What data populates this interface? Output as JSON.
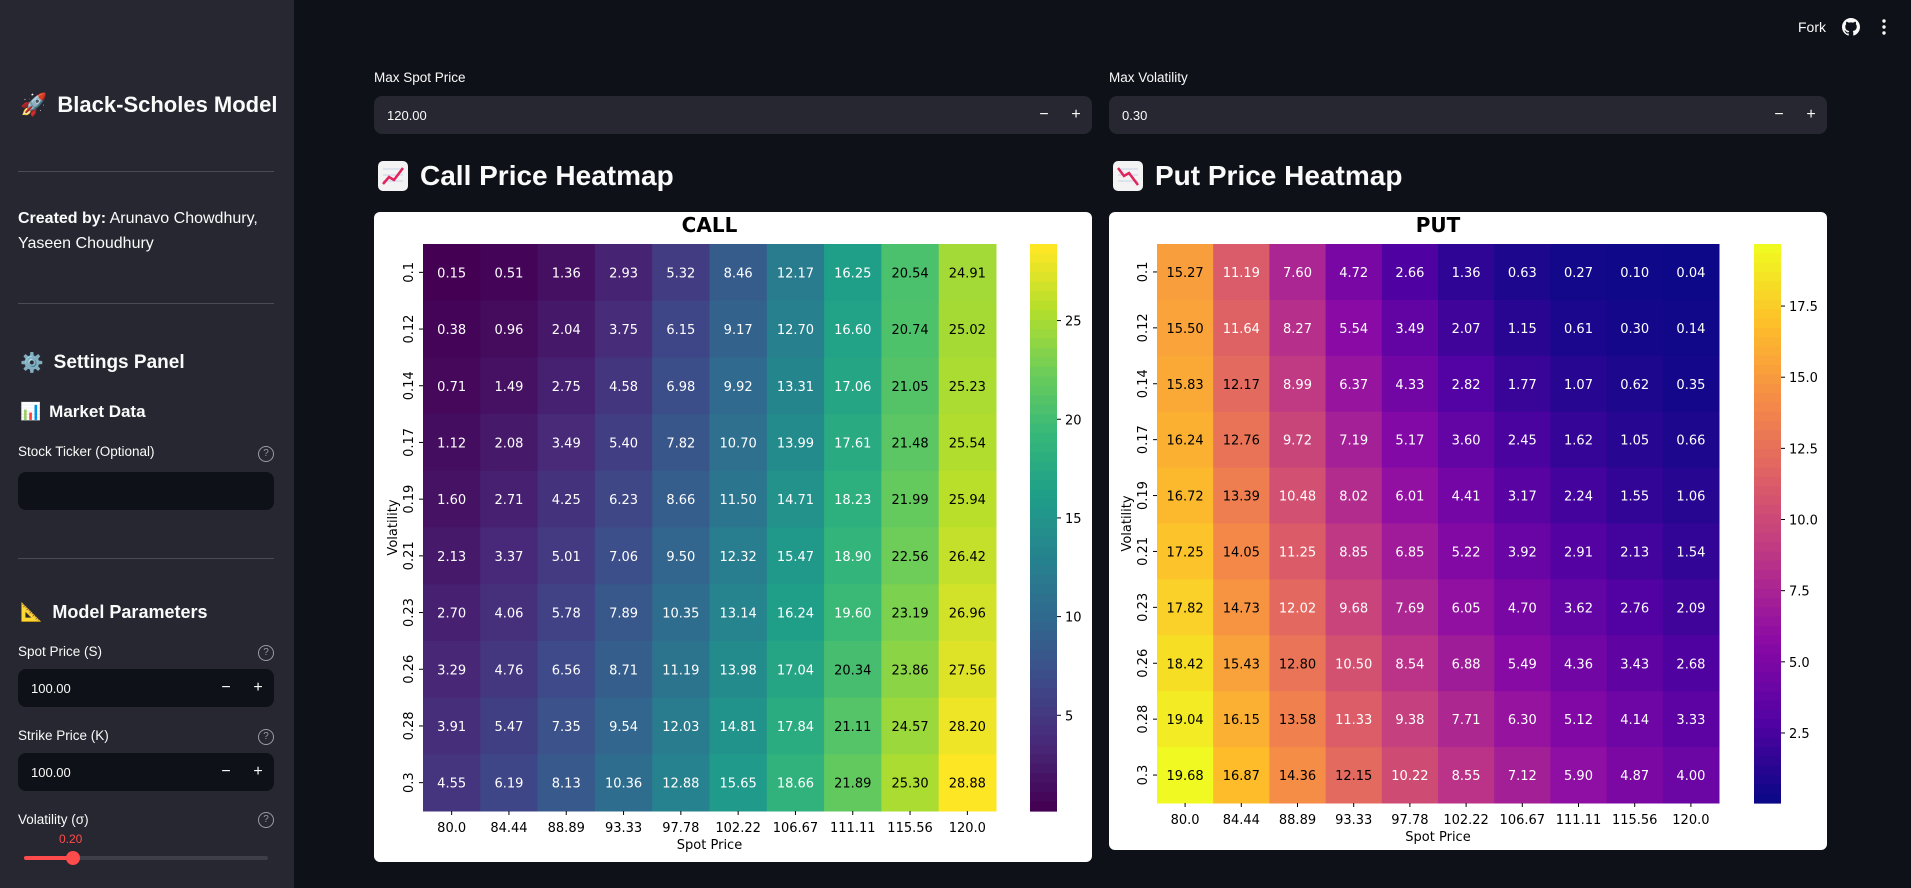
{
  "sidebar": {
    "app_title": "Black-Scholes Model",
    "app_emoji": "🚀",
    "created_label": "Created by:",
    "created_names": " Arunavo Chowdhury, Yaseen Choudhury",
    "settings_title": "Settings Panel",
    "settings_emoji": "⚙️",
    "market_title": "Market Data",
    "market_emoji": "📊",
    "ticker_label": "Stock Ticker (Optional)",
    "ticker_value": "",
    "model_title": "Model Parameters",
    "model_emoji": "📐",
    "spot_label": "Spot Price (S)",
    "spot_value": "100.00",
    "strike_label": "Strike Price (K)",
    "strike_value": "100.00",
    "vol_label": "Volatility (σ)",
    "vol_value": "0.20",
    "vol_min": 0.0,
    "vol_max": 1.0,
    "minus": "−",
    "plus": "+",
    "help": "?"
  },
  "header": {
    "fork_label": "Fork"
  },
  "main": {
    "max_spot_label": "Max Spot Price",
    "max_spot_value": "120.00",
    "max_vol_label": "Max Volatility",
    "max_vol_value": "0.30",
    "call_title": "Call Price Heatmap",
    "put_title": "Put Price Heatmap"
  },
  "colors": {
    "accent": "#ff4b4b",
    "background": "#0e1117",
    "sidebar": "#262730",
    "input": "#262730"
  },
  "chart_data": [
    {
      "type": "heatmap",
      "title": "CALL",
      "xlabel": "Spot Price",
      "ylabel": "Volatility",
      "colormap": "viridis",
      "x": [
        "80.0",
        "84.44",
        "88.89",
        "93.33",
        "97.78",
        "102.22",
        "106.67",
        "111.11",
        "115.56",
        "120.0"
      ],
      "y": [
        "0.1",
        "0.12",
        "0.14",
        "0.17",
        "0.19",
        "0.21",
        "0.23",
        "0.26",
        "0.28",
        "0.3"
      ],
      "colorbar_ticks": [
        5,
        10,
        15,
        20,
        25
      ],
      "vmin": 0.15,
      "vmax": 28.88,
      "values": [
        [
          0.15,
          0.51,
          1.36,
          2.93,
          5.32,
          8.46,
          12.17,
          16.25,
          20.54,
          24.91
        ],
        [
          0.38,
          0.96,
          2.04,
          3.75,
          6.15,
          9.17,
          12.7,
          16.6,
          20.74,
          25.02
        ],
        [
          0.71,
          1.49,
          2.75,
          4.58,
          6.98,
          9.92,
          13.31,
          17.06,
          21.05,
          25.23
        ],
        [
          1.12,
          2.08,
          3.49,
          5.4,
          7.82,
          10.7,
          13.99,
          17.61,
          21.48,
          25.54
        ],
        [
          1.6,
          2.71,
          4.25,
          6.23,
          8.66,
          11.5,
          14.71,
          18.23,
          21.99,
          25.94
        ],
        [
          2.13,
          3.37,
          5.01,
          7.06,
          9.5,
          12.32,
          15.47,
          18.9,
          22.56,
          26.42
        ],
        [
          2.7,
          4.06,
          5.78,
          7.89,
          10.35,
          13.14,
          16.24,
          19.6,
          23.19,
          26.96
        ],
        [
          3.29,
          4.76,
          6.56,
          8.71,
          11.19,
          13.98,
          17.04,
          20.34,
          23.86,
          27.56
        ],
        [
          3.91,
          5.47,
          7.35,
          9.54,
          12.03,
          14.81,
          17.84,
          21.11,
          24.57,
          28.2
        ],
        [
          4.55,
          6.19,
          8.13,
          10.36,
          12.88,
          15.65,
          18.66,
          21.89,
          25.3,
          28.88
        ]
      ]
    },
    {
      "type": "heatmap",
      "title": "PUT",
      "xlabel": "Spot Price",
      "ylabel": "Volatility",
      "colormap": "plasma",
      "x": [
        "80.0",
        "84.44",
        "88.89",
        "93.33",
        "97.78",
        "102.22",
        "106.67",
        "111.11",
        "115.56",
        "120.0"
      ],
      "y": [
        "0.1",
        "0.12",
        "0.14",
        "0.17",
        "0.19",
        "0.21",
        "0.23",
        "0.26",
        "0.28",
        "0.3"
      ],
      "colorbar_ticks": [
        "2.5",
        "5.0",
        "7.5",
        "10.0",
        "12.5",
        "15.0",
        "17.5"
      ],
      "vmin": 0.04,
      "vmax": 19.68,
      "values": [
        [
          15.27,
          11.19,
          7.6,
          4.72,
          2.66,
          1.36,
          0.63,
          0.27,
          0.1,
          0.04
        ],
        [
          15.5,
          11.64,
          8.27,
          5.54,
          3.49,
          2.07,
          1.15,
          0.61,
          0.3,
          0.14
        ],
        [
          15.83,
          12.17,
          8.99,
          6.37,
          4.33,
          2.82,
          1.77,
          1.07,
          0.62,
          0.35
        ],
        [
          16.24,
          12.76,
          9.72,
          7.19,
          5.17,
          3.6,
          2.45,
          1.62,
          1.05,
          0.66
        ],
        [
          16.72,
          13.39,
          10.48,
          8.02,
          6.01,
          4.41,
          3.17,
          2.24,
          1.55,
          1.06
        ],
        [
          17.25,
          14.05,
          11.25,
          8.85,
          6.85,
          5.22,
          3.92,
          2.91,
          2.13,
          1.54
        ],
        [
          17.82,
          14.73,
          12.02,
          9.68,
          7.69,
          6.05,
          4.7,
          3.62,
          2.76,
          2.09
        ],
        [
          18.42,
          15.43,
          12.8,
          10.5,
          8.54,
          6.88,
          5.49,
          4.36,
          3.43,
          2.68
        ],
        [
          19.04,
          16.15,
          13.58,
          11.33,
          9.38,
          7.71,
          6.3,
          5.12,
          4.14,
          3.33
        ],
        [
          19.68,
          16.87,
          14.36,
          12.15,
          10.22,
          8.55,
          7.12,
          5.9,
          4.87,
          4.0
        ]
      ]
    }
  ]
}
